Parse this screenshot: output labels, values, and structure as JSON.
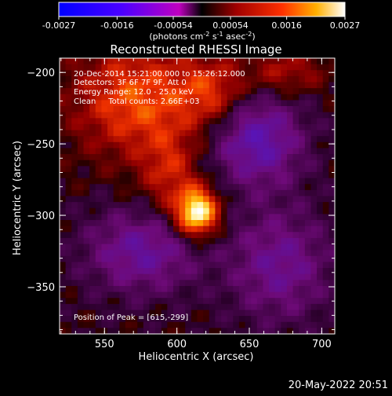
{
  "footer_timestamp": "20-May-2022 20:51",
  "colorbar": {
    "tick_labels": [
      "-0.0027",
      "-0.0016",
      "-0.00054",
      "0.00054",
      "0.0016",
      "0.0027"
    ],
    "range": [
      -0.0027,
      0.0027
    ],
    "units_label": "(photons cm",
    "units_exp1": "-2",
    "units_mid1": " s",
    "units_exp2": "-1",
    "units_mid2": " asec",
    "units_exp3": "-2",
    "units_end": ")"
  },
  "chart_data": {
    "type": "heatmap",
    "title": "Reconstructed RHESSI Image",
    "xlabel": "Heliocentric X (arcsec)",
    "ylabel": "Heliocentric Y (arcsec)",
    "xlim": [
      519,
      709
    ],
    "ylim": [
      -383,
      -190
    ],
    "x_ticks": [
      550,
      600,
      650,
      700
    ],
    "x_tick_labels": [
      "550",
      "600",
      "650",
      "700"
    ],
    "y_ticks": [
      -200,
      -250,
      -300,
      -350
    ],
    "y_tick_labels": [
      "−200",
      "−250",
      "−300",
      "−350"
    ],
    "colormap": "red-temperature with blue-purple negatives",
    "peak_position": [
      615,
      -299
    ],
    "annotations": [
      "20-Dec-2014 15:21:00.000 to 15:26:12.000",
      "Detectors: 3F 6F 7F 9F, Att 0",
      "Energy Range: 12.0 - 25.0 keV",
      "Clean     Total counts: 2.66E+03",
      "Position of Peak = [615,-299]"
    ]
  }
}
